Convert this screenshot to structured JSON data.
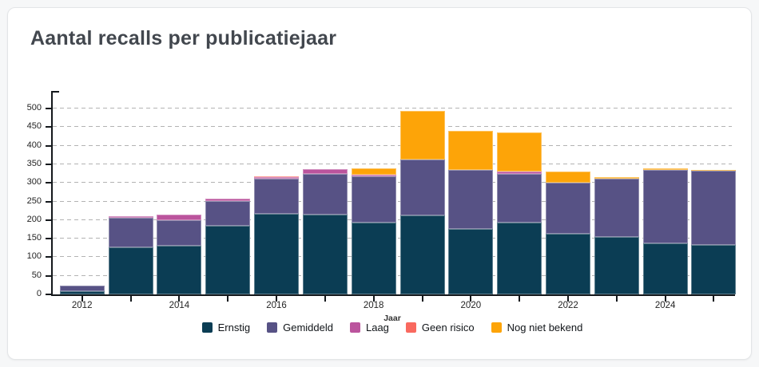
{
  "page": {
    "title": "Aantal recalls per publicatiejaar"
  },
  "chart_data": {
    "type": "bar",
    "stacked": true,
    "title": "Aantal recalls per publicatiejaar",
    "xlabel": "Jaar",
    "ylabel": "",
    "ylim": [
      0,
      500
    ],
    "y_tick_step": 50,
    "grid": true,
    "legend_position": "bottom",
    "categories": [
      "2012",
      "2013",
      "2014",
      "2015",
      "2016",
      "2017",
      "2018",
      "2019",
      "2020",
      "2021",
      "2022",
      "2023",
      "2024",
      "2025"
    ],
    "x_labeled_ticks": [
      "2012",
      "2014",
      "2016",
      "2018",
      "2020",
      "2022",
      "2024"
    ],
    "series": [
      {
        "name": "Ernstig",
        "color": "#0b3d54",
        "values": [
          8,
          127,
          131,
          185,
          217,
          214,
          194,
          212,
          176,
          194,
          164,
          155,
          138,
          133
        ]
      },
      {
        "name": "Gemiddeld",
        "color": "#575285",
        "values": [
          15,
          79,
          69,
          66,
          95,
          110,
          124,
          151,
          159,
          131,
          136,
          156,
          197,
          200
        ]
      },
      {
        "name": "Laag",
        "color": "#bb549d",
        "values": [
          0,
          4,
          14,
          6,
          3,
          13,
          5,
          0,
          0,
          5,
          0,
          0,
          0,
          0
        ]
      },
      {
        "name": "Geen risico",
        "color": "#f9695f",
        "values": [
          0,
          0,
          0,
          0,
          3,
          0,
          0,
          0,
          0,
          0,
          0,
          0,
          0,
          0
        ]
      },
      {
        "name": "Nog niet bekend",
        "color": "#fda408",
        "values": [
          0,
          0,
          0,
          0,
          0,
          0,
          16,
          131,
          106,
          105,
          30,
          5,
          4,
          2
        ]
      }
    ],
    "stack_totals": [
      23,
      210,
      214,
      257,
      318,
      337,
      339,
      494,
      441,
      435,
      330,
      316,
      339,
      335
    ]
  }
}
